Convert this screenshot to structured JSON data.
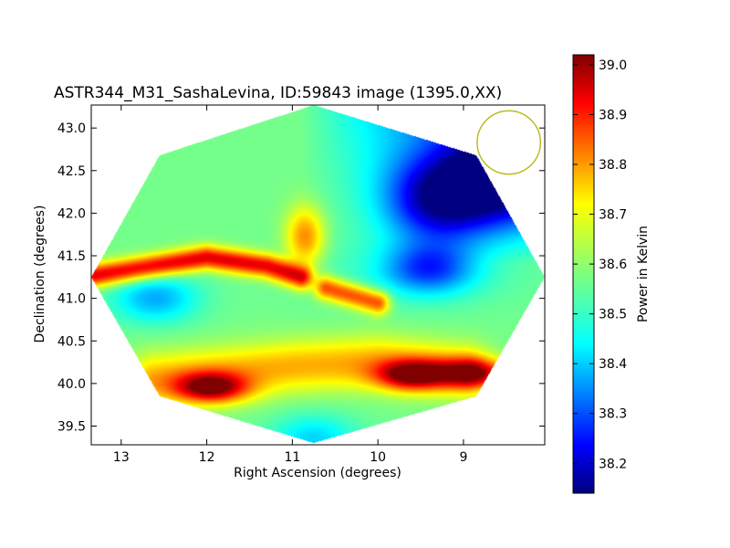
{
  "chart_data": {
    "type": "heatmap",
    "title": "ASTR344_M31_SashaLevina, ID:59843 image (1395.0,XX)",
    "xlabel": "Right Ascension (degrees)",
    "ylabel": "Declination (degrees)",
    "colorbar_label": "Power in Kelvin",
    "xlim": [
      13.35,
      8.05
    ],
    "ylim": [
      39.28,
      43.27
    ],
    "x_ticks": [
      13,
      12,
      11,
      10,
      9
    ],
    "x_tick_labels": [
      "13",
      "12",
      "11",
      "10",
      "9"
    ],
    "y_ticks": [
      39.5,
      40.0,
      40.5,
      41.0,
      41.5,
      42.0,
      42.5,
      43.0
    ],
    "y_tick_labels": [
      "39.5",
      "40.0",
      "40.5",
      "41.0",
      "41.5",
      "42.0",
      "42.5",
      "43.0"
    ],
    "colorbar_range": [
      38.14,
      39.02
    ],
    "colorbar_ticks": [
      38.2,
      38.3,
      38.4,
      38.5,
      38.6,
      38.7,
      38.8,
      38.9,
      39.0
    ],
    "colorbar_tick_labels": [
      "38.2",
      "38.3",
      "38.4",
      "38.5",
      "38.6",
      "38.7",
      "38.8",
      "38.9",
      "39.0"
    ],
    "colormap": "jet",
    "grid": false,
    "map_outline": [
      [
        13.35,
        41.25
      ],
      [
        12.55,
        42.68
      ],
      [
        10.75,
        43.27
      ],
      [
        8.85,
        42.68
      ],
      [
        8.05,
        41.25
      ],
      [
        8.85,
        39.85
      ],
      [
        10.75,
        39.3
      ],
      [
        12.55,
        39.85
      ]
    ],
    "features": [
      {
        "kind": "ridge",
        "x": [
          13.3,
          12.0,
          11.3,
          10.9
        ],
        "y": [
          41.27,
          41.48,
          41.38,
          41.25
        ],
        "value": 38.98
      },
      {
        "kind": "ridge",
        "x": [
          10.6,
          10.0
        ],
        "y": [
          41.12,
          40.95
        ],
        "value": 38.9
      },
      {
        "kind": "peak",
        "x": 11.95,
        "y": 39.95,
        "value": 39.0
      },
      {
        "kind": "peak",
        "x": 9.6,
        "y": 40.1,
        "value": 39.0
      },
      {
        "kind": "peak",
        "x": 8.85,
        "y": 40.12,
        "value": 38.95
      },
      {
        "kind": "band",
        "x": [
          12.6,
          11.0,
          10.0,
          9.0
        ],
        "y": [
          40.05,
          40.2,
          40.25,
          40.15
        ],
        "value": 38.82
      },
      {
        "kind": "lobe",
        "x": 10.85,
        "y": 41.72,
        "value": 38.82
      },
      {
        "kind": "hole",
        "x": 9.3,
        "y": 42.15,
        "value": 38.2
      },
      {
        "kind": "hole",
        "x": 8.6,
        "y": 42.4,
        "value": 38.18
      },
      {
        "kind": "low",
        "x": 9.4,
        "y": 41.35,
        "value": 38.32
      },
      {
        "kind": "low",
        "x": 12.6,
        "y": 41.0,
        "value": 38.38
      },
      {
        "kind": "low",
        "x": 10.75,
        "y": 39.35,
        "value": 38.42
      }
    ],
    "beam": {
      "x": 8.47,
      "y": 42.83,
      "radius_deg": 0.37,
      "color": "#b8b814"
    }
  }
}
